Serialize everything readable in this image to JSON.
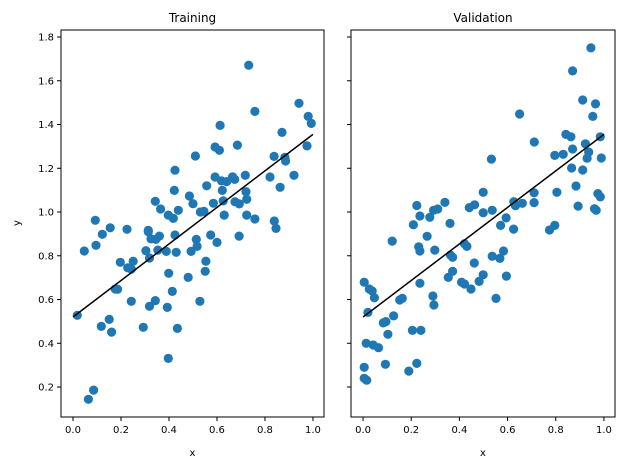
{
  "chart_data": [
    {
      "type": "scatter",
      "title": "Training",
      "xlabel": "x",
      "ylabel": "y",
      "xlim": [
        -0.05,
        1.046
      ],
      "ylim": [
        0.063,
        1.832
      ],
      "xticks": [
        "0.0",
        "0.2",
        "0.4",
        "0.6",
        "0.8",
        "1.0"
      ],
      "yticks": [
        "0.2",
        "0.4",
        "0.6",
        "0.8",
        "1.0",
        "1.2",
        "1.4",
        "1.6",
        "1.8"
      ],
      "grid": false,
      "marker_color": "#1f77b4",
      "line_color": "#000000",
      "fit_line": {
        "x": [
          0.0,
          1.0
        ],
        "y": [
          0.52,
          1.355
        ]
      },
      "points": [
        [
          0.732,
          1.671
        ],
        [
          0.942,
          1.497
        ],
        [
          0.758,
          1.46
        ],
        [
          0.98,
          1.437
        ],
        [
          0.993,
          1.405
        ],
        [
          0.613,
          1.396
        ],
        [
          0.871,
          1.364
        ],
        [
          0.975,
          1.302
        ],
        [
          0.685,
          1.306
        ],
        [
          0.592,
          1.297
        ],
        [
          0.61,
          1.282
        ],
        [
          0.51,
          1.256
        ],
        [
          0.838,
          1.254
        ],
        [
          0.883,
          1.25
        ],
        [
          0.886,
          1.233
        ],
        [
          0.425,
          1.191
        ],
        [
          0.921,
          1.168
        ],
        [
          0.718,
          1.168
        ],
        [
          0.821,
          1.16
        ],
        [
          0.592,
          1.16
        ],
        [
          0.665,
          1.161
        ],
        [
          0.674,
          1.149
        ],
        [
          0.557,
          1.12
        ],
        [
          0.863,
          1.113
        ],
        [
          0.619,
          1.142
        ],
        [
          0.64,
          1.139
        ],
        [
          0.422,
          1.099
        ],
        [
          0.622,
          1.099
        ],
        [
          0.721,
          1.093
        ],
        [
          0.485,
          1.073
        ],
        [
          0.343,
          1.049
        ],
        [
          0.585,
          1.04
        ],
        [
          0.5,
          1.038
        ],
        [
          0.724,
          1.058
        ],
        [
          0.675,
          1.047
        ],
        [
          0.626,
          1.051
        ],
        [
          0.693,
          1.037
        ],
        [
          0.365,
          1.014
        ],
        [
          0.439,
          1.008
        ],
        [
          0.531,
          1.0
        ],
        [
          0.546,
          1.003
        ],
        [
          0.397,
          0.986
        ],
        [
          0.63,
          0.986
        ],
        [
          0.724,
          0.986
        ],
        [
          0.418,
          0.971
        ],
        [
          0.758,
          0.968
        ],
        [
          0.093,
          0.962
        ],
        [
          0.839,
          0.959
        ],
        [
          0.846,
          0.925
        ],
        [
          0.155,
          0.928
        ],
        [
          0.225,
          0.921
        ],
        [
          0.314,
          0.916
        ],
        [
          0.122,
          0.898
        ],
        [
          0.314,
          0.91
        ],
        [
          0.36,
          0.89
        ],
        [
          0.425,
          0.895
        ],
        [
          0.574,
          0.895
        ],
        [
          0.692,
          0.89
        ],
        [
          0.325,
          0.877
        ],
        [
          0.345,
          0.875
        ],
        [
          0.514,
          0.875
        ],
        [
          0.6,
          0.861
        ],
        [
          0.096,
          0.848
        ],
        [
          0.517,
          0.843
        ],
        [
          0.047,
          0.822
        ],
        [
          0.304,
          0.823
        ],
        [
          0.389,
          0.82
        ],
        [
          0.43,
          0.816
        ],
        [
          0.492,
          0.82
        ],
        [
          0.354,
          0.826
        ],
        [
          0.319,
          0.79
        ],
        [
          0.197,
          0.77
        ],
        [
          0.251,
          0.775
        ],
        [
          0.554,
          0.775
        ],
        [
          0.228,
          0.745
        ],
        [
          0.243,
          0.739
        ],
        [
          0.399,
          0.72
        ],
        [
          0.551,
          0.729
        ],
        [
          0.48,
          0.701
        ],
        [
          0.176,
          0.648
        ],
        [
          0.186,
          0.647
        ],
        [
          0.414,
          0.637
        ],
        [
          0.243,
          0.592
        ],
        [
          0.343,
          0.595
        ],
        [
          0.529,
          0.592
        ],
        [
          0.319,
          0.569
        ],
        [
          0.393,
          0.564
        ],
        [
          0.018,
          0.528
        ],
        [
          0.151,
          0.509
        ],
        [
          0.118,
          0.477
        ],
        [
          0.293,
          0.473
        ],
        [
          0.435,
          0.468
        ],
        [
          0.161,
          0.451
        ],
        [
          0.397,
          0.331
        ],
        [
          0.086,
          0.186
        ],
        [
          0.064,
          0.144
        ]
      ]
    },
    {
      "type": "scatter",
      "title": "Validation",
      "xlabel": "x",
      "ylabel": "",
      "xlim": [
        -0.05,
        1.046
      ],
      "ylim": [
        0.063,
        1.832
      ],
      "xticks": [
        "0.0",
        "0.2",
        "0.4",
        "0.6",
        "0.8",
        "1.0"
      ],
      "yticks": [],
      "ytick_values_shared": [
        0.2,
        0.4,
        0.6,
        0.8,
        1.0,
        1.2,
        1.4,
        1.6,
        1.8
      ],
      "grid": false,
      "marker_color": "#1f77b4",
      "line_color": "#000000",
      "fit_line": {
        "x": [
          0.0,
          1.0
        ],
        "y": [
          0.52,
          1.355
        ]
      },
      "points": [
        [
          0.946,
          1.75
        ],
        [
          0.87,
          1.645
        ],
        [
          0.912,
          1.512
        ],
        [
          0.965,
          1.494
        ],
        [
          0.954,
          1.437
        ],
        [
          0.65,
          1.448
        ],
        [
          0.842,
          1.355
        ],
        [
          0.863,
          1.344
        ],
        [
          0.985,
          1.344
        ],
        [
          0.711,
          1.32
        ],
        [
          0.923,
          1.312
        ],
        [
          0.87,
          1.288
        ],
        [
          0.937,
          1.274
        ],
        [
          0.796,
          1.259
        ],
        [
          0.831,
          1.264
        ],
        [
          0.93,
          1.246
        ],
        [
          0.989,
          1.247
        ],
        [
          0.533,
          1.242
        ],
        [
          0.866,
          1.201
        ],
        [
          0.912,
          1.192
        ],
        [
          0.884,
          1.119
        ],
        [
          0.499,
          1.09
        ],
        [
          0.71,
          1.088
        ],
        [
          0.805,
          1.09
        ],
        [
          0.975,
          1.084
        ],
        [
          0.985,
          1.069
        ],
        [
          0.626,
          1.047
        ],
        [
          0.71,
          1.043
        ],
        [
          0.34,
          1.044
        ],
        [
          0.223,
          1.03
        ],
        [
          0.463,
          1.033
        ],
        [
          0.661,
          1.04
        ],
        [
          0.633,
          1.029
        ],
        [
          0.441,
          1.02
        ],
        [
          0.893,
          1.027
        ],
        [
          0.31,
          1.014
        ],
        [
          0.293,
          1.008
        ],
        [
          0.961,
          1.015
        ],
        [
          0.968,
          1.008
        ],
        [
          0.536,
          1.008
        ],
        [
          0.236,
          0.982
        ],
        [
          0.499,
          0.997
        ],
        [
          0.277,
          0.976
        ],
        [
          0.594,
          0.973
        ],
        [
          0.209,
          0.942
        ],
        [
          0.361,
          0.948
        ],
        [
          0.571,
          0.939
        ],
        [
          0.796,
          0.939
        ],
        [
          0.774,
          0.918
        ],
        [
          0.625,
          0.922
        ],
        [
          0.121,
          0.867
        ],
        [
          0.266,
          0.889
        ],
        [
          0.231,
          0.841
        ],
        [
          0.236,
          0.822
        ],
        [
          0.298,
          0.826
        ],
        [
          0.421,
          0.855
        ],
        [
          0.431,
          0.843
        ],
        [
          0.363,
          0.803
        ],
        [
          0.372,
          0.793
        ],
        [
          0.536,
          0.798
        ],
        [
          0.568,
          0.788
        ],
        [
          0.583,
          0.822
        ],
        [
          0.462,
          0.767
        ],
        [
          0.372,
          0.729
        ],
        [
          0.354,
          0.701
        ],
        [
          0.499,
          0.713
        ],
        [
          0.482,
          0.683
        ],
        [
          0.595,
          0.707
        ],
        [
          0.409,
          0.679
        ],
        [
          0.421,
          0.671
        ],
        [
          0.448,
          0.648
        ],
        [
          0.552,
          0.605
        ],
        [
          0.236,
          0.674
        ],
        [
          0.005,
          0.679
        ],
        [
          0.026,
          0.648
        ],
        [
          0.038,
          0.639
        ],
        [
          0.047,
          0.608
        ],
        [
          0.152,
          0.598
        ],
        [
          0.163,
          0.605
        ],
        [
          0.29,
          0.616
        ],
        [
          0.294,
          0.575
        ],
        [
          0.02,
          0.541
        ],
        [
          0.127,
          0.525
        ],
        [
          0.084,
          0.493
        ],
        [
          0.095,
          0.499
        ],
        [
          0.103,
          0.441
        ],
        [
          0.205,
          0.459
        ],
        [
          0.24,
          0.459
        ],
        [
          0.013,
          0.4
        ],
        [
          0.042,
          0.392
        ],
        [
          0.064,
          0.38
        ],
        [
          0.005,
          0.29
        ],
        [
          0.093,
          0.304
        ],
        [
          0.223,
          0.308
        ],
        [
          0.19,
          0.273
        ],
        [
          0.005,
          0.24
        ],
        [
          0.015,
          0.231
        ]
      ]
    }
  ]
}
